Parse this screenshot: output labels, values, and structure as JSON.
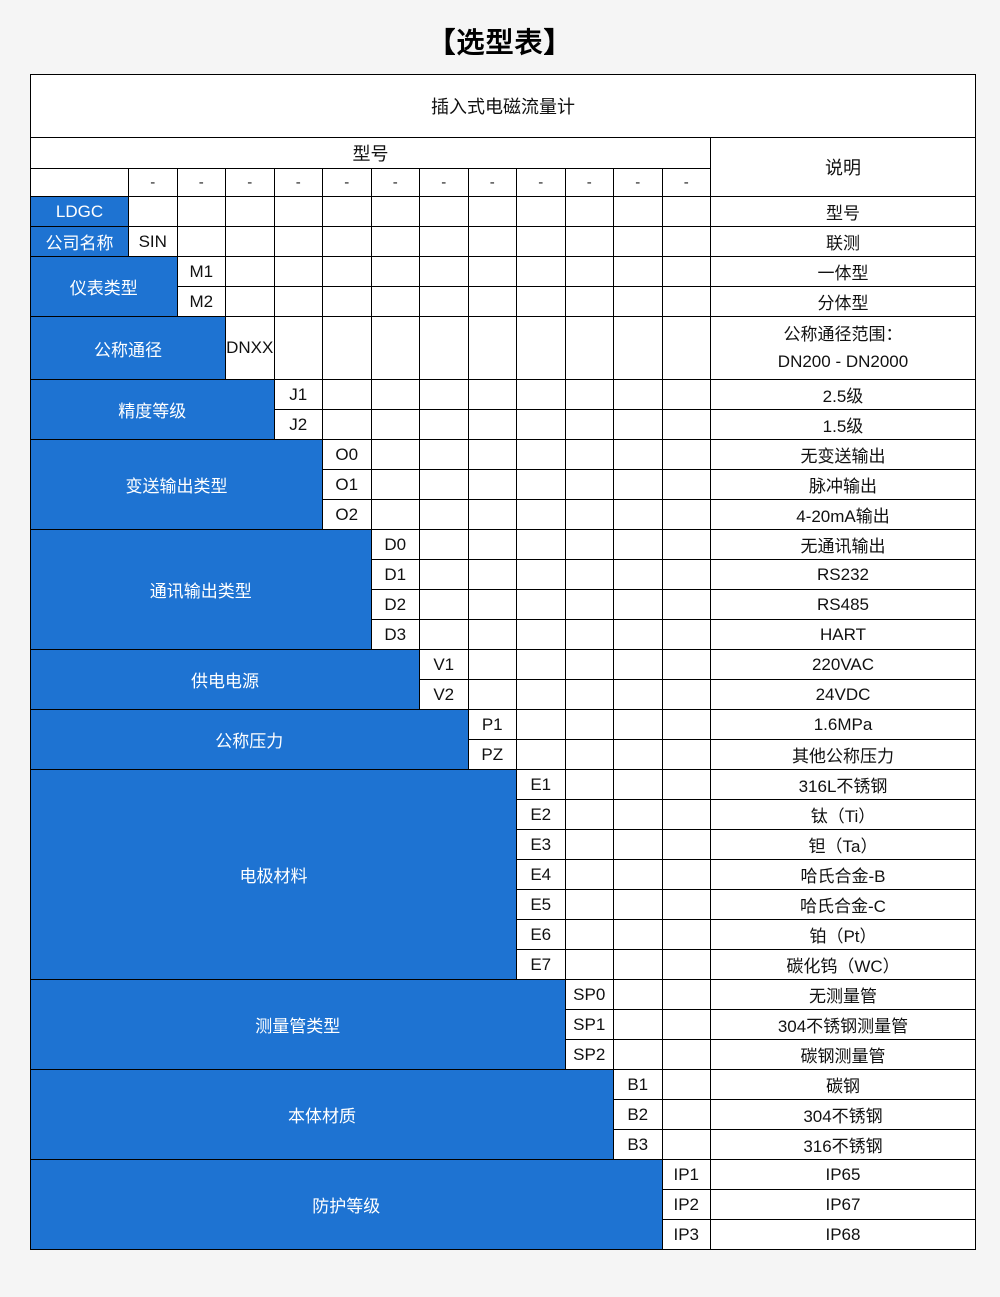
{
  "page": {
    "title": "【选型表】"
  },
  "colors": {
    "accent_blue": "#1e73d2",
    "grid_line": "#000000",
    "page_background": "#f5f5f5",
    "cell_background": "#ffffff",
    "label_text": "#ffffff",
    "body_text": "#111111"
  },
  "table": {
    "product": "插入式电磁流量计",
    "model_header": "型号",
    "desc_header": "说明",
    "dash": "-",
    "dash_count": 12,
    "total_code_cols": 13,
    "groups": [
      {
        "label": "LDGC",
        "label_cols": 1,
        "rows": [
          {
            "code": null,
            "desc": "型号"
          }
        ]
      },
      {
        "label": "公司名称",
        "label_cols": 1,
        "rows": [
          {
            "code": "SIN",
            "desc": "联测"
          }
        ]
      },
      {
        "label": "仪表类型",
        "label_cols": 2,
        "rows": [
          {
            "code": "M1",
            "desc": "一体型"
          },
          {
            "code": "M2",
            "desc": "分体型"
          }
        ]
      },
      {
        "label": "公称通径",
        "label_cols": 3,
        "rows": [
          {
            "code": "DNXX",
            "tall": true,
            "desc_lines": [
              "公称通径范围：",
              "DN200 - DN2000"
            ]
          }
        ]
      },
      {
        "label": "精度等级",
        "label_cols": 4,
        "rows": [
          {
            "code": "J1",
            "desc": "2.5级"
          },
          {
            "code": "J2",
            "desc": "1.5级"
          }
        ]
      },
      {
        "label": "变送输出类型",
        "label_cols": 5,
        "rows": [
          {
            "code": "O0",
            "desc": "无变送输出"
          },
          {
            "code": "O1",
            "desc": "脉冲输出"
          },
          {
            "code": "O2",
            "desc": "4-20mA输出"
          }
        ]
      },
      {
        "label": "通讯输出类型",
        "label_cols": 6,
        "rows": [
          {
            "code": "D0",
            "desc": "无通讯输出"
          },
          {
            "code": "D1",
            "desc": "RS232"
          },
          {
            "code": "D2",
            "desc": "RS485"
          },
          {
            "code": "D3",
            "desc": "HART"
          }
        ]
      },
      {
        "label": "供电电源",
        "label_cols": 7,
        "rows": [
          {
            "code": "V1",
            "desc": "220VAC"
          },
          {
            "code": "V2",
            "desc": "24VDC"
          }
        ]
      },
      {
        "label": "公称压力",
        "label_cols": 8,
        "rows": [
          {
            "code": "P1",
            "desc": "1.6MPa"
          },
          {
            "code": "PZ",
            "desc": "其他公称压力"
          }
        ]
      },
      {
        "label": "电极材料",
        "label_cols": 9,
        "rows": [
          {
            "code": "E1",
            "desc": "316L不锈钢"
          },
          {
            "code": "E2",
            "desc": "钛（Ti）"
          },
          {
            "code": "E3",
            "desc": "钽（Ta）"
          },
          {
            "code": "E4",
            "desc": "哈氏合金-B"
          },
          {
            "code": "E5",
            "desc": "哈氏合金-C"
          },
          {
            "code": "E6",
            "desc": "铂（Pt）"
          },
          {
            "code": "E7",
            "desc": "碳化钨（WC）"
          }
        ]
      },
      {
        "label": "测量管类型",
        "label_cols": 10,
        "rows": [
          {
            "code": "SP0",
            "desc": "无测量管"
          },
          {
            "code": "SP1",
            "desc": "304不锈钢测量管"
          },
          {
            "code": "SP2",
            "desc": "碳钢测量管"
          }
        ]
      },
      {
        "label": "本体材质",
        "label_cols": 11,
        "rows": [
          {
            "code": "B1",
            "desc": "碳钢"
          },
          {
            "code": "B2",
            "desc": "304不锈钢"
          },
          {
            "code": "B3",
            "desc": "316不锈钢"
          }
        ]
      },
      {
        "label": "防护等级",
        "label_cols": 12,
        "rows": [
          {
            "code": "IP1",
            "desc": "IP65"
          },
          {
            "code": "IP2",
            "desc": "IP67"
          },
          {
            "code": "IP3",
            "desc": "IP68"
          }
        ]
      }
    ]
  }
}
